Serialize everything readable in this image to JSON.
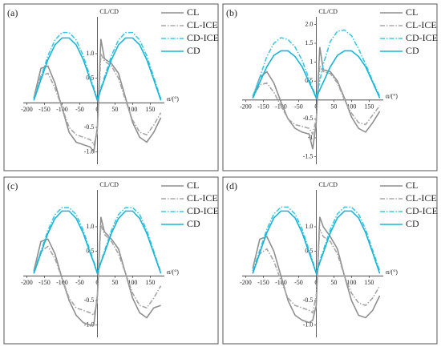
{
  "chart_data": [
    {
      "type": "line",
      "panel_label": "(a)",
      "x_label": "α/(°)",
      "y_label": "CL/CD",
      "x": [
        -180,
        -160,
        -140,
        -120,
        -100,
        -80,
        -60,
        -40,
        -20,
        -10,
        0,
        10,
        20,
        40,
        60,
        80,
        100,
        120,
        140,
        160,
        180
      ],
      "xlim": [
        -210,
        190
      ],
      "ylim": [
        -1.25,
        1.75
      ],
      "xticks": [
        -200,
        -150,
        -100,
        -50,
        0,
        50,
        100,
        150
      ],
      "yticks": [
        {
          "value": -1.0,
          "label": "-1.0"
        },
        -0.5,
        0.5,
        {
          "value": 1.0,
          "label": "1.0"
        }
      ],
      "legend": "upper right",
      "series": [
        {
          "name": "CL",
          "color": "#8f8f8f",
          "dash": "solid",
          "values": [
            0.1,
            0.7,
            0.75,
            0.4,
            -0.1,
            -0.6,
            -0.8,
            -0.85,
            -0.9,
            -1.0,
            -0.5,
            1.3,
            0.9,
            0.8,
            0.6,
            0.1,
            -0.4,
            -0.7,
            -0.8,
            -0.6,
            -0.3
          ]
        },
        {
          "name": "CL-ICE",
          "color": "#a6a6a6",
          "dash": "dashdot",
          "values": [
            0.1,
            0.55,
            0.6,
            0.3,
            -0.1,
            -0.5,
            -0.65,
            -0.7,
            -0.75,
            -0.85,
            -0.6,
            1.0,
            0.85,
            0.75,
            0.5,
            0.05,
            -0.35,
            -0.6,
            -0.65,
            -0.45,
            -0.2
          ]
        },
        {
          "name": "CD-ICE",
          "color": "#3cc8e4",
          "dash": "dashdot",
          "values": [
            0.08,
            0.52,
            0.96,
            1.28,
            1.43,
            1.43,
            1.28,
            0.96,
            0.52,
            0.3,
            0.06,
            0.3,
            0.52,
            0.96,
            1.28,
            1.43,
            1.43,
            1.28,
            0.96,
            0.52,
            0.08
          ]
        },
        {
          "name": "CD",
          "color": "#1ab4d6",
          "dash": "solid",
          "values": [
            0.05,
            0.47,
            0.88,
            1.18,
            1.32,
            1.32,
            1.18,
            0.88,
            0.47,
            0.27,
            0.05,
            0.27,
            0.47,
            0.88,
            1.18,
            1.32,
            1.32,
            1.18,
            0.88,
            0.47,
            0.05
          ]
        }
      ]
    },
    {
      "type": "line",
      "panel_label": "(b)",
      "x_label": "α/(°)",
      "y_label": "CL/CD",
      "x": [
        -180,
        -160,
        -140,
        -120,
        -100,
        -80,
        -60,
        -40,
        -20,
        -10,
        0,
        10,
        20,
        40,
        60,
        80,
        100,
        120,
        140,
        160,
        180
      ],
      "xlim": [
        -210,
        190
      ],
      "ylim": [
        -1.7,
        2.2
      ],
      "xticks": [
        -200,
        -150,
        -100,
        -50,
        0,
        50,
        100,
        150
      ],
      "yticks": [
        -1.5,
        -1,
        -0.5,
        0.5,
        1,
        1.5,
        {
          "value": 2.0,
          "label": "2.0"
        }
      ],
      "legend": "upper right",
      "series": [
        {
          "name": "CL",
          "color": "#8f8f8f",
          "dash": "solid",
          "values": [
            0.05,
            0.6,
            0.75,
            0.45,
            -0.05,
            -0.5,
            -0.75,
            -0.85,
            -0.9,
            -1.3,
            -0.6,
            1.4,
            0.8,
            0.75,
            0.5,
            0.05,
            -0.45,
            -0.75,
            -0.85,
            -0.6,
            -0.3
          ]
        },
        {
          "name": "CL-ICE",
          "color": "#a6a6a6",
          "dash": "dashdot",
          "values": [
            0.05,
            0.4,
            0.45,
            0.2,
            -0.15,
            -0.5,
            -0.65,
            -0.7,
            -0.75,
            -0.9,
            -0.5,
            0.9,
            0.75,
            0.7,
            0.45,
            0.0,
            -0.35,
            -0.6,
            -0.65,
            -0.4,
            -0.15
          ]
        },
        {
          "name": "CD-ICE",
          "color": "#3cc8e4",
          "dash": "dashdot",
          "values": [
            0.1,
            0.6,
            1.15,
            1.5,
            1.65,
            1.6,
            1.4,
            1.05,
            0.55,
            0.3,
            0.08,
            0.5,
            0.95,
            1.55,
            1.82,
            1.85,
            1.7,
            1.35,
            0.95,
            0.5,
            0.1
          ]
        },
        {
          "name": "CD",
          "color": "#1ab4d6",
          "dash": "solid",
          "values": [
            0.05,
            0.47,
            0.88,
            1.18,
            1.3,
            1.3,
            1.15,
            0.88,
            0.47,
            0.27,
            0.05,
            0.27,
            0.47,
            0.88,
            1.18,
            1.3,
            1.3,
            1.15,
            0.88,
            0.47,
            0.05
          ]
        }
      ]
    },
    {
      "type": "line",
      "panel_label": "(c)",
      "x_label": "α/(°)",
      "y_label": "CL/CD",
      "x": [
        -180,
        -160,
        -140,
        -120,
        -100,
        -80,
        -60,
        -40,
        -20,
        -10,
        0,
        10,
        20,
        40,
        60,
        80,
        100,
        120,
        140,
        160,
        180
      ],
      "xlim": [
        -210,
        190
      ],
      "ylim": [
        -1.25,
        1.75
      ],
      "xticks": [
        -200,
        -150,
        -100,
        -50,
        0,
        50,
        100,
        150
      ],
      "yticks": [
        {
          "value": -1.0,
          "label": "-1.0"
        },
        -0.5,
        0.5,
        {
          "value": 1.0,
          "label": "1.0"
        }
      ],
      "legend": "upper right",
      "series": [
        {
          "name": "CL",
          "color": "#8f8f8f",
          "dash": "solid",
          "values": [
            0.1,
            0.7,
            0.75,
            0.45,
            -0.05,
            -0.5,
            -0.8,
            -0.95,
            -1.0,
            -1.0,
            -0.4,
            1.2,
            0.9,
            0.75,
            0.55,
            0.05,
            -0.45,
            -0.75,
            -0.85,
            -0.65,
            -0.6
          ]
        },
        {
          "name": "CL-ICE",
          "color": "#a6a6a6",
          "dash": "dashdot",
          "values": [
            0.05,
            0.5,
            0.6,
            0.35,
            -0.05,
            -0.45,
            -0.65,
            -0.7,
            -0.75,
            -0.8,
            -0.5,
            1.05,
            0.85,
            0.7,
            0.45,
            0.05,
            -0.35,
            -0.6,
            -0.65,
            -0.45,
            -0.2
          ]
        },
        {
          "name": "CD-ICE",
          "color": "#3cc8e4",
          "dash": "dashdot",
          "values": [
            0.07,
            0.5,
            0.93,
            1.25,
            1.39,
            1.39,
            1.25,
            0.93,
            0.5,
            0.29,
            0.06,
            0.29,
            0.5,
            0.93,
            1.25,
            1.39,
            1.39,
            1.25,
            0.93,
            0.5,
            0.07
          ]
        },
        {
          "name": "CD",
          "color": "#1ab4d6",
          "dash": "solid",
          "values": [
            0.05,
            0.46,
            0.87,
            1.17,
            1.32,
            1.32,
            1.17,
            0.87,
            0.46,
            0.27,
            0.05,
            0.27,
            0.46,
            0.87,
            1.17,
            1.32,
            1.32,
            1.17,
            0.87,
            0.46,
            0.05
          ]
        }
      ]
    },
    {
      "type": "line",
      "panel_label": "(d)",
      "x_label": "α/(°)",
      "y_label": "CL/CD",
      "x": [
        -180,
        -160,
        -140,
        -120,
        -100,
        -80,
        -60,
        -40,
        -20,
        -10,
        0,
        10,
        20,
        40,
        60,
        80,
        100,
        120,
        140,
        160,
        180
      ],
      "xlim": [
        -210,
        190
      ],
      "ylim": [
        -1.25,
        1.75
      ],
      "xticks": [
        -200,
        -150,
        -100,
        -50,
        0,
        50,
        100,
        150
      ],
      "yticks": [
        {
          "value": -1.0,
          "label": "-1.0"
        },
        -0.5,
        0.5,
        {
          "value": 1.0,
          "label": "1.0"
        }
      ],
      "legend": "upper right",
      "series": [
        {
          "name": "CL",
          "color": "#8f8f8f",
          "dash": "solid",
          "values": [
            0.15,
            0.75,
            0.8,
            0.5,
            0.0,
            -0.5,
            -0.8,
            -0.9,
            -0.95,
            -0.9,
            -0.6,
            1.2,
            1.0,
            0.8,
            0.55,
            0.0,
            -0.5,
            -0.8,
            -0.85,
            -0.7,
            -0.4
          ]
        },
        {
          "name": "CL-ICE",
          "color": "#a6a6a6",
          "dash": "dashdot",
          "values": [
            0.05,
            0.45,
            0.55,
            0.3,
            -0.1,
            -0.45,
            -0.6,
            -0.65,
            -0.7,
            -0.75,
            -0.4,
            0.95,
            0.8,
            0.7,
            0.45,
            0.0,
            -0.35,
            -0.55,
            -0.6,
            -0.45,
            -0.2
          ]
        },
        {
          "name": "CD-ICE",
          "color": "#3cc8e4",
          "dash": "dashdot",
          "values": [
            0.1,
            0.52,
            0.95,
            1.26,
            1.4,
            1.4,
            1.26,
            0.95,
            0.52,
            0.3,
            0.06,
            0.3,
            0.52,
            0.95,
            1.26,
            1.4,
            1.4,
            1.26,
            0.95,
            0.52,
            0.1
          ]
        },
        {
          "name": "CD",
          "color": "#1ab4d6",
          "dash": "solid",
          "values": [
            0.05,
            0.47,
            0.88,
            1.18,
            1.32,
            1.32,
            1.18,
            0.88,
            0.47,
            0.27,
            0.05,
            0.27,
            0.47,
            0.88,
            1.18,
            1.32,
            1.32,
            1.18,
            0.88,
            0.47,
            0.05
          ]
        }
      ]
    }
  ]
}
